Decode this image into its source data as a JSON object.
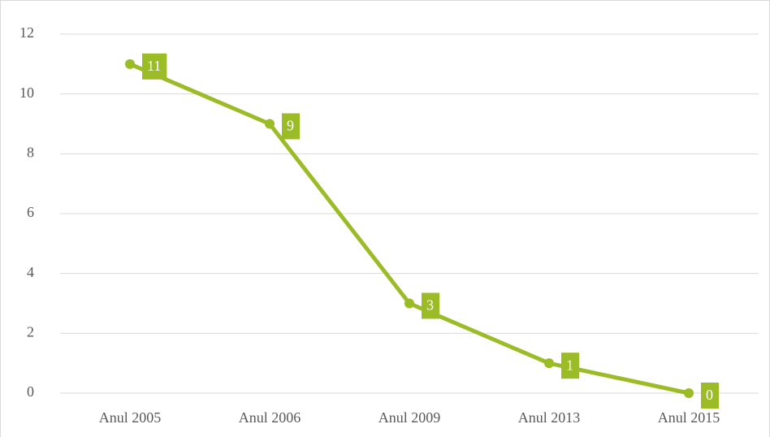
{
  "chart_data": {
    "type": "line",
    "categories": [
      "Anul 2005",
      "Anul 2006",
      "Anul 2009",
      "Anul 2013",
      "Anul 2015"
    ],
    "series": [
      {
        "color": "#9bbb27",
        "values": [
          11,
          9,
          3,
          1,
          0
        ]
      }
    ],
    "ylim": [
      0,
      12
    ],
    "yticks": [
      0,
      2,
      4,
      6,
      8,
      10,
      12
    ],
    "grid": true,
    "data_labels": true
  }
}
